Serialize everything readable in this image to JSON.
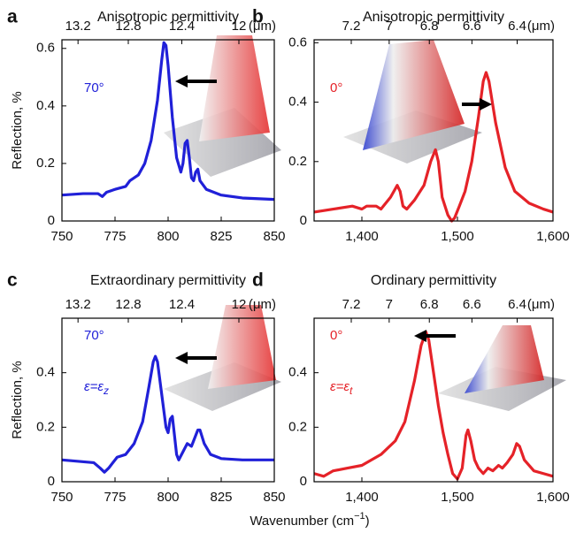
{
  "figure": {
    "xlabel": "Wavenumber (cm",
    "xlabel_sup": "−1",
    "xlabel_end": ")",
    "ylabel": "Reflection, %"
  },
  "chart_data": [
    {
      "type": "line",
      "panel": "a",
      "title": "Anisotropic permittivity",
      "x2unit": "(μm)",
      "angle": "70°",
      "color": "#2020d8",
      "x": [
        750,
        760,
        767,
        769,
        771,
        775,
        780,
        782,
        786,
        789,
        792,
        795,
        797,
        798,
        799,
        800,
        802,
        804,
        806,
        807,
        808,
        809,
        810,
        811,
        812,
        813,
        814,
        815,
        818,
        825,
        835,
        850
      ],
      "values": [
        0.09,
        0.095,
        0.095,
        0.085,
        0.1,
        0.11,
        0.12,
        0.14,
        0.16,
        0.2,
        0.28,
        0.42,
        0.56,
        0.62,
        0.61,
        0.54,
        0.36,
        0.22,
        0.17,
        0.2,
        0.27,
        0.28,
        0.22,
        0.15,
        0.14,
        0.17,
        0.18,
        0.14,
        0.11,
        0.09,
        0.08,
        0.075
      ],
      "xlim": [
        750,
        850
      ],
      "xticks": [
        750,
        775,
        800,
        825,
        850
      ],
      "x2ticks": [
        13.2,
        12.8,
        12.4,
        12
      ],
      "ylim": [
        0,
        0.63
      ],
      "yticks": [
        0,
        0.2,
        0.4,
        0.6
      ]
    },
    {
      "type": "line",
      "panel": "b",
      "title": "Anisotropic permittivity",
      "x2unit": "(μm)",
      "angle": "0°",
      "color": "#e52228",
      "x": [
        1350,
        1370,
        1390,
        1400,
        1405,
        1415,
        1420,
        1430,
        1437,
        1440,
        1443,
        1447,
        1455,
        1465,
        1472,
        1477,
        1480,
        1484,
        1490,
        1494,
        1497,
        1502,
        1508,
        1515,
        1522,
        1527,
        1530,
        1533,
        1540,
        1550,
        1560,
        1575,
        1590,
        1600
      ],
      "values": [
        0.03,
        0.04,
        0.05,
        0.04,
        0.05,
        0.05,
        0.04,
        0.08,
        0.12,
        0.1,
        0.05,
        0.04,
        0.07,
        0.12,
        0.2,
        0.24,
        0.2,
        0.08,
        0.02,
        0,
        0.01,
        0.05,
        0.1,
        0.2,
        0.35,
        0.47,
        0.5,
        0.47,
        0.33,
        0.18,
        0.1,
        0.06,
        0.04,
        0.03
      ],
      "xlim": [
        1350,
        1600
      ],
      "xticks": [
        {
          "value": 1400,
          "label": "1,400"
        },
        {
          "value": 1500,
          "label": "1,500"
        },
        {
          "value": 1600,
          "label": "1,600"
        }
      ],
      "x2ticks": [
        7.2,
        7,
        6.8,
        6.6,
        6.4
      ],
      "ylim": [
        0,
        0.61
      ],
      "yticks": [
        0,
        0.2,
        0.4,
        0.6
      ]
    },
    {
      "type": "line",
      "panel": "c",
      "title": "Extraordinary permittivity",
      "x2unit": "(μm)",
      "angle": "70°",
      "eps": "ε=ε",
      "eps_sub": "z",
      "color": "#2020d8",
      "x": [
        750,
        765,
        768,
        770,
        772,
        776,
        780,
        784,
        788,
        791,
        793,
        794,
        795,
        797,
        799,
        800,
        801,
        802,
        803,
        804,
        805,
        807,
        809,
        811,
        812,
        814,
        815,
        817,
        820,
        825,
        835,
        850
      ],
      "values": [
        0.08,
        0.07,
        0.05,
        0.035,
        0.05,
        0.09,
        0.1,
        0.14,
        0.22,
        0.35,
        0.44,
        0.46,
        0.44,
        0.32,
        0.2,
        0.18,
        0.23,
        0.24,
        0.17,
        0.1,
        0.08,
        0.11,
        0.14,
        0.13,
        0.15,
        0.19,
        0.19,
        0.14,
        0.1,
        0.085,
        0.08,
        0.08
      ],
      "xlim": [
        750,
        850
      ],
      "xticks": [
        750,
        775,
        800,
        825,
        850
      ],
      "x2ticks": [
        13.2,
        12.8,
        12.4,
        12
      ],
      "ylim": [
        0,
        0.6
      ],
      "yticks": [
        0,
        0.2,
        0.4
      ]
    },
    {
      "type": "line",
      "panel": "d",
      "title": "Ordinary permittivity",
      "x2unit": "(μm)",
      "angle": "0°",
      "eps": "ε=ε",
      "eps_sub": "t",
      "color": "#e52228",
      "x": [
        1350,
        1360,
        1370,
        1385,
        1400,
        1420,
        1435,
        1445,
        1455,
        1462,
        1467,
        1470,
        1475,
        1480,
        1485,
        1490,
        1495,
        1500,
        1505,
        1509,
        1511,
        1514,
        1518,
        1522,
        1527,
        1532,
        1537,
        1543,
        1547,
        1552,
        1558,
        1562,
        1565,
        1570,
        1580,
        1590,
        1600
      ],
      "values": [
        0.03,
        0.02,
        0.04,
        0.05,
        0.06,
        0.1,
        0.15,
        0.22,
        0.37,
        0.5,
        0.55,
        0.52,
        0.4,
        0.28,
        0.18,
        0.1,
        0.03,
        0.01,
        0.05,
        0.17,
        0.19,
        0.15,
        0.08,
        0.05,
        0.03,
        0.05,
        0.04,
        0.06,
        0.05,
        0.07,
        0.1,
        0.14,
        0.13,
        0.08,
        0.04,
        0.03,
        0.02
      ],
      "xlim": [
        1350,
        1600
      ],
      "xticks": [
        {
          "value": 1400,
          "label": "1,400"
        },
        {
          "value": 1500,
          "label": "1,500"
        },
        {
          "value": 1600,
          "label": "1,600"
        }
      ],
      "x2ticks": [
        7.2,
        7,
        6.8,
        6.6,
        6.4
      ],
      "ylim": [
        0,
        0.6
      ],
      "yticks": [
        0,
        0.2,
        0.4
      ]
    }
  ]
}
